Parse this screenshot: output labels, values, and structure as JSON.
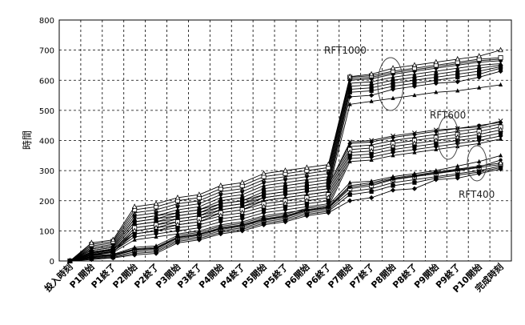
{
  "chart_data": {
    "type": "line",
    "ylabel": "時間",
    "ylim": [
      0,
      800
    ],
    "yticks": [
      0,
      100,
      200,
      300,
      400,
      500,
      600,
      700,
      800
    ],
    "grid": true,
    "categories": [
      "投入時刻",
      "P1開始",
      "P1終了",
      "P2開始",
      "P2終了",
      "P3開始",
      "P3終了",
      "P4開始",
      "P4終了",
      "P5開始",
      "P5終了",
      "P6開始",
      "P6終了",
      "P7開始",
      "P7終了",
      "P8開始",
      "P8終了",
      "P9開始",
      "P9終了",
      "P10開始",
      "完成時刻"
    ],
    "groups": [
      {
        "label": "RFT1000",
        "series": [
          {
            "values": [
              0,
              30,
              40,
              120,
              130,
              150,
              160,
              190,
              200,
              230,
              240,
              250,
              260,
              570,
              575,
              590,
              600,
              610,
              620,
              630,
              645
            ]
          },
          {
            "values": [
              0,
              35,
              45,
              130,
              140,
              160,
              170,
              200,
              210,
              240,
              250,
              260,
              270,
              580,
              585,
              600,
              610,
              620,
              630,
              640,
              650
            ]
          },
          {
            "values": [
              0,
              40,
              50,
              140,
              150,
              170,
              180,
              210,
              220,
              250,
              260,
              270,
              280,
              590,
              595,
              610,
              620,
              630,
              640,
              650,
              655
            ]
          },
          {
            "values": [
              0,
              45,
              55,
              150,
              160,
              180,
              190,
              220,
              230,
              260,
              270,
              280,
              290,
              600,
              605,
              620,
              630,
              640,
              650,
              660,
              665
            ]
          },
          {
            "values": [
              0,
              50,
              60,
              160,
              170,
              190,
              200,
              230,
              240,
              270,
              280,
              290,
              300,
              605,
              610,
              625,
              635,
              645,
              655,
              665,
              670
            ]
          },
          {
            "values": [
              0,
              55,
              65,
              170,
              180,
              200,
              210,
              240,
              250,
              280,
              290,
              300,
              310,
              610,
              615,
              630,
              640,
              650,
              660,
              670,
              675
            ]
          },
          {
            "values": [
              0,
              60,
              70,
              180,
              190,
              210,
              220,
              250,
              260,
              290,
              300,
              310,
              320,
              612,
              620,
              640,
              650,
              660,
              670,
              680,
              700
            ]
          },
          {
            "values": [
              0,
              25,
              35,
              110,
              120,
              140,
              150,
              180,
              190,
              220,
              230,
              240,
              250,
              560,
              565,
              580,
              590,
              600,
              610,
              620,
              640
            ]
          },
          {
            "values": [
              0,
              28,
              38,
              100,
              110,
              130,
              140,
              170,
              180,
              210,
              220,
              230,
              240,
              545,
              550,
              570,
              580,
              590,
              595,
              610,
              630
            ]
          },
          {
            "values": [
              0,
              20,
              30,
              90,
              100,
              120,
              130,
              160,
              170,
              200,
              210,
              220,
              230,
              520,
              530,
              540,
              550,
              560,
              565,
              575,
              585
            ]
          }
        ]
      },
      {
        "label": "RFT600",
        "series": [
          {
            "values": [
              0,
              30,
              40,
              120,
              130,
              140,
              150,
              170,
              180,
              200,
              210,
              220,
              230,
              380,
              385,
              400,
              410,
              420,
              430,
              440,
              455
            ]
          },
          {
            "values": [
              0,
              35,
              45,
              130,
              140,
              150,
              160,
              180,
              190,
              210,
              220,
              230,
              240,
              390,
              395,
              410,
              420,
              430,
              440,
              450,
              460
            ]
          },
          {
            "values": [
              0,
              40,
              50,
              140,
              150,
              160,
              170,
              190,
              200,
              220,
              230,
              240,
              250,
              395,
              400,
              415,
              425,
              435,
              440,
              445,
              465
            ]
          },
          {
            "values": [
              0,
              25,
              35,
              110,
              120,
              130,
              140,
              160,
              170,
              190,
              200,
              210,
              220,
              370,
              375,
              390,
              400,
              410,
              420,
              430,
              445
            ]
          },
          {
            "values": [
              0,
              20,
              30,
              100,
              110,
              120,
              130,
              150,
              160,
              180,
              190,
              200,
              210,
              360,
              365,
              380,
              390,
              400,
              410,
              420,
              435
            ]
          },
          {
            "values": [
              0,
              28,
              38,
              90,
              100,
              110,
              120,
              140,
              150,
              170,
              180,
              190,
              200,
              350,
              355,
              370,
              380,
              390,
              400,
              410,
              425
            ]
          },
          {
            "values": [
              0,
              22,
              32,
              80,
              90,
              100,
              110,
              130,
              140,
              160,
              170,
              180,
              190,
              340,
              345,
              360,
              370,
              380,
              390,
              400,
              415
            ]
          },
          {
            "values": [
              0,
              18,
              28,
              70,
              80,
              90,
              100,
              120,
              130,
              150,
              160,
              170,
              180,
              330,
              335,
              350,
              360,
              370,
              380,
              390,
              405
            ]
          }
        ]
      },
      {
        "label": "RFT400",
        "series": [
          {
            "values": [
              0,
              10,
              15,
              30,
              35,
              70,
              80,
              100,
              110,
              130,
              140,
              160,
              170,
              230,
              240,
              260,
              270,
              280,
              290,
              300,
              315
            ]
          },
          {
            "values": [
              0,
              12,
              18,
              35,
              40,
              75,
              85,
              105,
              115,
              135,
              145,
              165,
              175,
              240,
              250,
              270,
              280,
              290,
              300,
              310,
              320
            ]
          },
          {
            "values": [
              0,
              15,
              20,
              40,
              45,
              80,
              90,
              110,
              120,
              140,
              150,
              170,
              180,
              250,
              260,
              275,
              285,
              295,
              305,
              315,
              325
            ]
          },
          {
            "values": [
              0,
              8,
              12,
              25,
              30,
              65,
              75,
              95,
              105,
              125,
              135,
              155,
              165,
              220,
              230,
              250,
              260,
              275,
              285,
              295,
              310
            ]
          },
          {
            "values": [
              0,
              5,
              10,
              20,
              25,
              60,
              70,
              90,
              100,
              120,
              130,
              150,
              160,
              200,
              210,
              235,
              240,
              270,
              275,
              290,
              305
            ]
          },
          {
            "values": [
              0,
              18,
              22,
              45,
              50,
              85,
              95,
              115,
              125,
              145,
              155,
              175,
              185,
              260,
              265,
              280,
              290,
              300,
              315,
              330,
              350
            ]
          },
          {
            "values": [
              0,
              14,
              19,
              38,
              42,
              78,
              88,
              108,
              118,
              138,
              148,
              168,
              178,
              245,
              255,
              272,
              282,
              292,
              302,
              312,
              335
            ]
          }
        ]
      }
    ]
  }
}
